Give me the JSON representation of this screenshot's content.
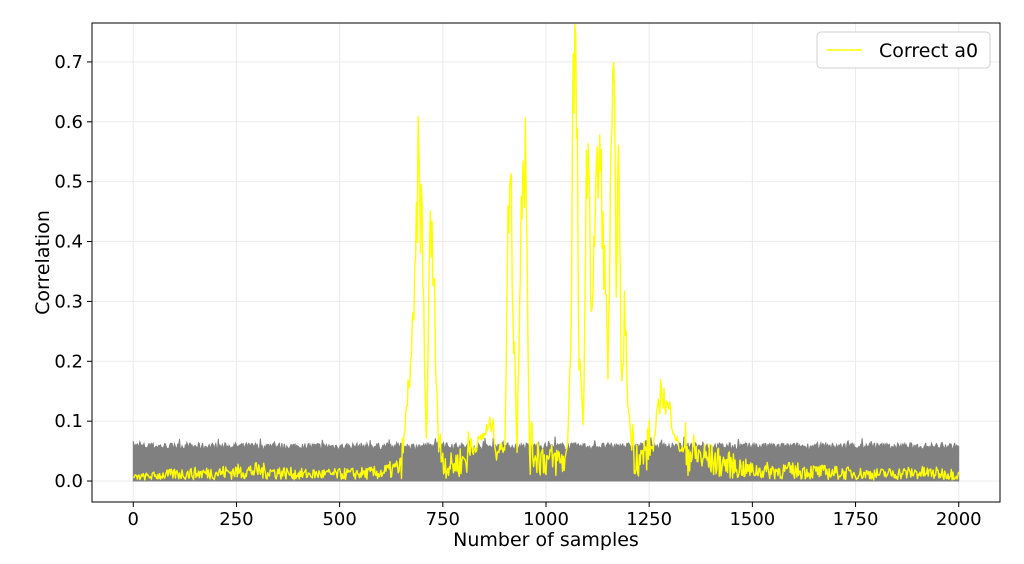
{
  "chart_data": {
    "type": "line",
    "title": "",
    "xlabel": "Number of samples",
    "ylabel": "Correlation",
    "xlim": [
      -100,
      2100
    ],
    "ylim": [
      -0.035,
      0.765
    ],
    "xticks": [
      0,
      250,
      500,
      750,
      1000,
      1250,
      1500,
      1750,
      2000
    ],
    "yticks": [
      0.0,
      0.1,
      0.2,
      0.3,
      0.4,
      0.5,
      0.6,
      0.7
    ],
    "xtick_labels": [
      "0",
      "250",
      "500",
      "750",
      "1000",
      "1250",
      "1500",
      "1750",
      "2000"
    ],
    "ytick_labels": [
      "0.0",
      "0.1",
      "0.2",
      "0.3",
      "0.4",
      "0.5",
      "0.6",
      "0.7"
    ],
    "grid": true,
    "legend": {
      "position": "top-right",
      "entries": [
        "Correct a0"
      ]
    },
    "series": [
      {
        "name": "",
        "kind": "band",
        "color": "#808080",
        "description_role": "incorrect-keys",
        "upper_base": 0.058,
        "upper_noise": 0.012,
        "x": [
          0,
          2000
        ]
      },
      {
        "name": "Correct a0",
        "color": "#ffff00",
        "x": [
          0,
          100,
          200,
          300,
          400,
          500,
          600,
          650,
          680,
          690,
          700,
          710,
          720,
          730,
          740,
          760,
          800,
          850,
          870,
          880,
          900,
          910,
          915,
          920,
          925,
          930,
          940,
          950,
          960,
          1000,
          1050,
          1060,
          1065,
          1070,
          1075,
          1080,
          1090,
          1100,
          1110,
          1120,
          1130,
          1140,
          1150,
          1160,
          1165,
          1170,
          1175,
          1180,
          1185,
          1190,
          1200,
          1210,
          1230,
          1260,
          1280,
          1290,
          1300,
          1320,
          1350,
          1400,
          1500,
          1600,
          1700,
          1800,
          1900,
          2000
        ],
        "y": [
          0.005,
          0.01,
          0.012,
          0.015,
          0.01,
          0.01,
          0.012,
          0.02,
          0.27,
          0.53,
          0.43,
          0.05,
          0.45,
          0.3,
          0.05,
          0.02,
          0.03,
          0.08,
          0.1,
          0.05,
          0.06,
          0.5,
          0.51,
          0.3,
          0.2,
          0.05,
          0.51,
          0.57,
          0.05,
          0.03,
          0.03,
          0.23,
          0.65,
          0.73,
          0.6,
          0.2,
          0.1,
          0.59,
          0.3,
          0.47,
          0.56,
          0.4,
          0.2,
          0.6,
          0.62,
          0.38,
          0.57,
          0.3,
          0.15,
          0.29,
          0.12,
          0.05,
          0.03,
          0.06,
          0.16,
          0.13,
          0.12,
          0.06,
          0.04,
          0.03,
          0.015,
          0.015,
          0.012,
          0.01,
          0.012,
          0.01
        ]
      }
    ]
  }
}
